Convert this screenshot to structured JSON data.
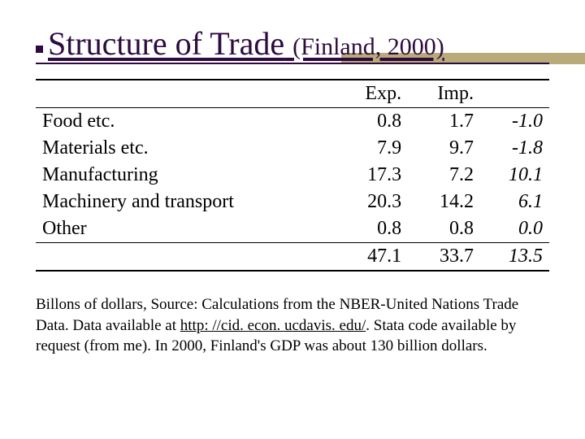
{
  "title": {
    "main": "Structure of Trade",
    "sub": "(Finland, 2000)",
    "color": "#2e0a3e",
    "accent_bar_color": "#b9aa7a"
  },
  "table": {
    "type": "table",
    "columns": [
      "",
      "Exp.",
      "Imp.",
      ""
    ],
    "rows": [
      {
        "label": "Food etc.",
        "exp": "0.8",
        "imp": "1.7",
        "net": "-1.0"
      },
      {
        "label": "Materials etc.",
        "exp": "7.9",
        "imp": "9.7",
        "net": "-1.8"
      },
      {
        "label": "Manufacturing",
        "exp": "17.3",
        "imp": "7.2",
        "net": "10.1"
      },
      {
        "label": "Machinery and transport",
        "exp": "20.3",
        "imp": "14.2",
        "net": "6.1"
      },
      {
        "label": "Other",
        "exp": "0.8",
        "imp": "0.8",
        "net": "0.0"
      }
    ],
    "totals": {
      "exp": "47.1",
      "imp": "33.7",
      "net": "13.5"
    },
    "font_size": 24,
    "rule_color": "#000000"
  },
  "caption": {
    "pre": "Billons of dollars, Source: Calculations from the NBER-United Nations Trade Data. Data available at ",
    "link": "http: //cid. econ. ucdavis. edu/",
    "post": ". Stata code available by request (from me). In 2000, Finland's GDP was about 130 billion dollars."
  }
}
